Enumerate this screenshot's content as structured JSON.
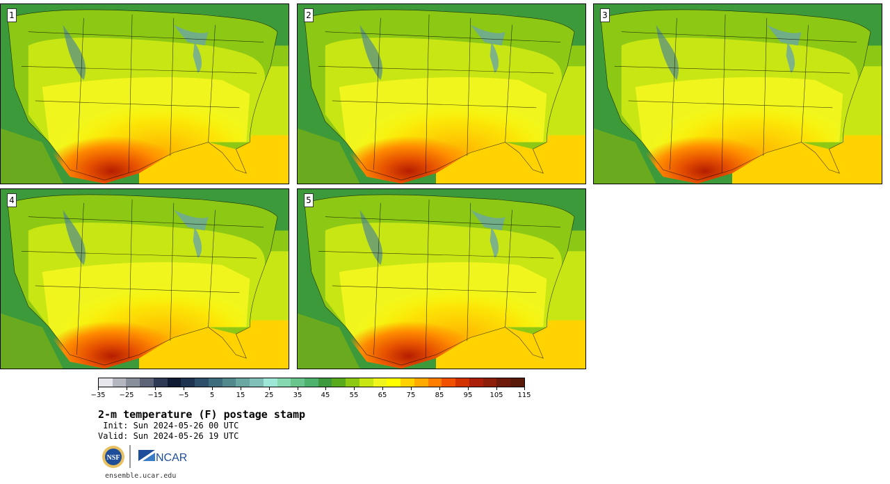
{
  "panels": [
    {
      "label": "1"
    },
    {
      "label": "2"
    },
    {
      "label": "3"
    },
    {
      "label": "4"
    },
    {
      "label": "5"
    }
  ],
  "colorbar": {
    "colors": [
      "#e6e6ec",
      "#b4b7c0",
      "#8a8f9c",
      "#5e6478",
      "#2e3a55",
      "#0f1b32",
      "#1e3350",
      "#2d4f69",
      "#3d6c7c",
      "#52898c",
      "#6aa6a2",
      "#80c0b8",
      "#9ee6d6",
      "#86d8b0",
      "#6ac58c",
      "#4fb26c",
      "#3c9a3c",
      "#5aaa1e",
      "#8cc814",
      "#c8e614",
      "#f0f51e",
      "#ffff00",
      "#ffd200",
      "#ffaa00",
      "#ff7d00",
      "#f05000",
      "#d23200",
      "#aa1e0a",
      "#8c1e0a",
      "#6e1a0a",
      "#5a1a0a"
    ],
    "tick_labels": [
      "−35",
      "−25",
      "−15",
      "−5",
      "5",
      "15",
      "25",
      "35",
      "45",
      "55",
      "65",
      "75",
      "85",
      "95",
      "105",
      "115"
    ]
  },
  "title": "2-m temperature (F) postage stamp",
  "init": " Init: Sun 2024-05-26 00 UTC",
  "valid": "Valid: Sun 2024-05-26 19 UTC",
  "logos": {
    "nsf": "NSF",
    "ncar": "NCAR"
  },
  "site": "ensemble.ucar.edu"
}
